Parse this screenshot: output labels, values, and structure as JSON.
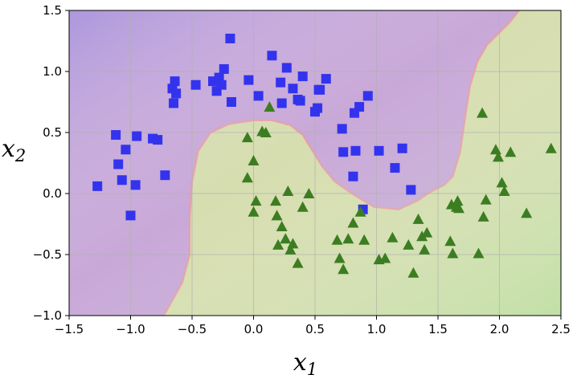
{
  "chart_data": {
    "type": "scatter",
    "title": "",
    "xlabel": "x",
    "xlabel_sub": "1",
    "ylabel": "x",
    "ylabel_sub": "2",
    "xlim": [
      -1.5,
      2.5
    ],
    "ylim": [
      -1.0,
      1.5
    ],
    "x_ticks": [
      -1.5,
      -1.0,
      -0.5,
      0.0,
      0.5,
      1.0,
      1.5,
      2.0,
      2.5
    ],
    "y_ticks": [
      -1.0,
      -0.5,
      0.0,
      0.5,
      1.0,
      1.5
    ],
    "x_tick_labels": [
      "−1.5",
      "−1.0",
      "−0.5",
      "0.0",
      "0.5",
      "1.0",
      "1.5",
      "2.0",
      "2.5"
    ],
    "y_tick_labels": [
      "−1.0",
      "−0.5",
      "0.0",
      "0.5",
      "1.0",
      "1.5"
    ],
    "grid": true,
    "background": "decision regions (purple = class 0, green = class 1)",
    "colors": {
      "class0_marker": "#3333ee",
      "class1_marker": "#3c7d22",
      "region0": "#c8a8d8",
      "region1": "#d6ddaf",
      "region0_corner": "#a9a8e6",
      "region1_corner": "#c7e3b4",
      "boundary": "#e89aa4",
      "grid": "#b0b0b0"
    },
    "series": [
      {
        "marker": "square",
        "points": [
          [
            -1.27,
            0.06
          ],
          [
            -1.12,
            0.48
          ],
          [
            -1.1,
            0.24
          ],
          [
            -1.07,
            0.11
          ],
          [
            -1.04,
            0.36
          ],
          [
            -1.0,
            -0.18
          ],
          [
            -0.96,
            0.07
          ],
          [
            -0.95,
            0.47
          ],
          [
            -0.82,
            0.45
          ],
          [
            -0.78,
            0.44
          ],
          [
            -0.72,
            0.15
          ],
          [
            -0.66,
            0.86
          ],
          [
            -0.65,
            0.74
          ],
          [
            -0.64,
            0.92
          ],
          [
            -0.63,
            0.82
          ],
          [
            -0.47,
            0.89
          ],
          [
            -0.33,
            0.92
          ],
          [
            -0.3,
            0.84
          ],
          [
            -0.28,
            0.95
          ],
          [
            -0.26,
            0.89
          ],
          [
            -0.24,
            1.02
          ],
          [
            -0.19,
            1.27
          ],
          [
            -0.18,
            0.75
          ],
          [
            -0.04,
            0.93
          ],
          [
            0.04,
            0.8
          ],
          [
            0.15,
            1.13
          ],
          [
            0.22,
            0.91
          ],
          [
            0.23,
            0.74
          ],
          [
            0.27,
            1.03
          ],
          [
            0.32,
            0.86
          ],
          [
            0.36,
            0.77
          ],
          [
            0.38,
            0.76
          ],
          [
            0.4,
            0.96
          ],
          [
            0.5,
            0.67
          ],
          [
            0.52,
            0.7
          ],
          [
            0.53,
            0.85
          ],
          [
            0.54,
            0.85
          ],
          [
            0.59,
            0.94
          ],
          [
            0.72,
            0.53
          ],
          [
            0.73,
            0.34
          ],
          [
            0.81,
            0.14
          ],
          [
            0.82,
            0.66
          ],
          [
            0.83,
            0.35
          ],
          [
            0.86,
            0.71
          ],
          [
            0.89,
            -0.13
          ],
          [
            0.93,
            0.8
          ],
          [
            1.02,
            0.35
          ],
          [
            1.15,
            0.21
          ],
          [
            1.21,
            0.37
          ],
          [
            1.28,
            0.03
          ]
        ]
      },
      {
        "marker": "triangle",
        "points": [
          [
            -0.05,
            0.46
          ],
          [
            -0.05,
            0.13
          ],
          [
            0.0,
            -0.15
          ],
          [
            0.0,
            0.27
          ],
          [
            0.02,
            -0.06
          ],
          [
            0.07,
            0.51
          ],
          [
            0.1,
            0.5
          ],
          [
            0.13,
            0.71
          ],
          [
            0.18,
            -0.06
          ],
          [
            0.19,
            -0.18
          ],
          [
            0.2,
            -0.42
          ],
          [
            0.23,
            -0.27
          ],
          [
            0.26,
            -0.37
          ],
          [
            0.28,
            0.02
          ],
          [
            0.3,
            -0.46
          ],
          [
            0.32,
            -0.41
          ],
          [
            0.36,
            -0.57
          ],
          [
            0.4,
            -0.11
          ],
          [
            0.45,
            0.0
          ],
          [
            0.68,
            -0.38
          ],
          [
            0.7,
            -0.53
          ],
          [
            0.73,
            -0.62
          ],
          [
            0.77,
            -0.37
          ],
          [
            0.81,
            -0.24
          ],
          [
            0.87,
            -0.15
          ],
          [
            0.9,
            -0.38
          ],
          [
            1.02,
            -0.54
          ],
          [
            1.07,
            -0.53
          ],
          [
            1.13,
            -0.36
          ],
          [
            1.26,
            -0.42
          ],
          [
            1.3,
            -0.65
          ],
          [
            1.34,
            -0.21
          ],
          [
            1.37,
            -0.35
          ],
          [
            1.39,
            -0.46
          ],
          [
            1.41,
            -0.32
          ],
          [
            1.6,
            -0.39
          ],
          [
            1.61,
            -0.09
          ],
          [
            1.62,
            -0.49
          ],
          [
            1.65,
            -0.11
          ],
          [
            1.66,
            -0.06
          ],
          [
            1.67,
            -0.12
          ],
          [
            1.83,
            -0.49
          ],
          [
            1.86,
            0.66
          ],
          [
            1.87,
            -0.19
          ],
          [
            1.89,
            -0.05
          ],
          [
            1.97,
            0.36
          ],
          [
            1.99,
            0.3
          ],
          [
            2.02,
            0.09
          ],
          [
            2.04,
            0.02
          ],
          [
            2.09,
            0.34
          ],
          [
            2.22,
            -0.16
          ],
          [
            2.42,
            0.37
          ]
        ]
      }
    ]
  }
}
